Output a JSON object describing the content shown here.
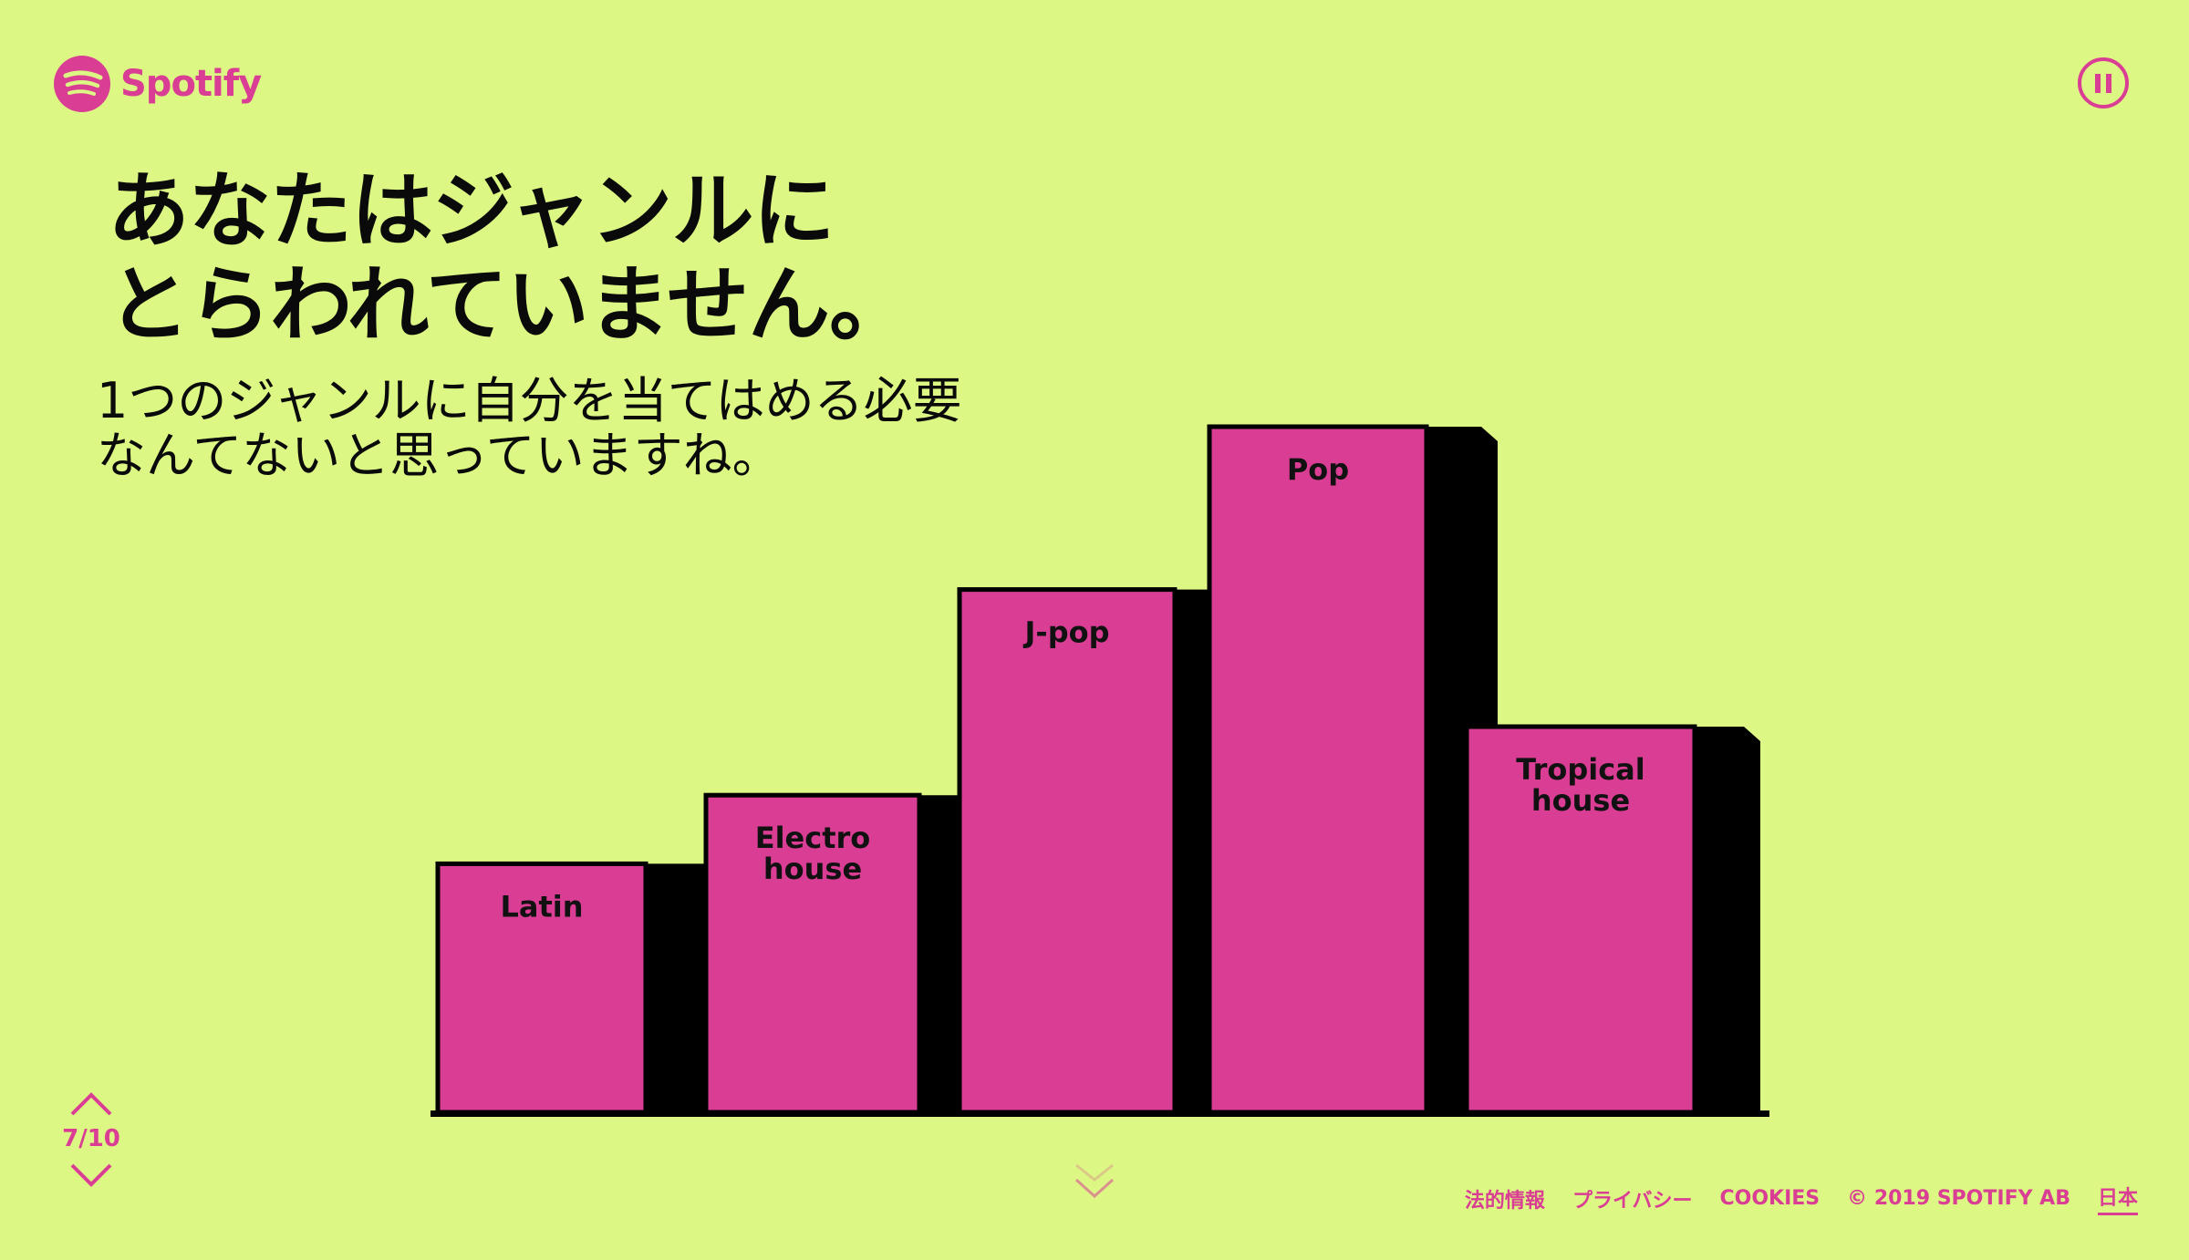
{
  "brand": {
    "name": "Spotify",
    "icon": "spotify-logo-icon",
    "accent_color": "#d93d94",
    "background_color": "#dcf783"
  },
  "controls": {
    "pause_icon": "pause-icon",
    "prev_icon": "chevron-up-icon",
    "next_icon": "chevron-down-icon",
    "scroll_hint_icon": "chevron-down-icon"
  },
  "slide": {
    "headline_lines": [
      "あなたはジャンルに",
      "とらわれていません。"
    ],
    "subhead_lines": [
      "1つのジャンルに自分を当てはめる必要",
      "なんてないと思っていますね。"
    ]
  },
  "chart_data": {
    "type": "bar",
    "categories": [
      "Latin",
      "Electro house",
      "J-pop",
      "Pop",
      "Tropical house"
    ],
    "values": [
      29,
      37,
      61,
      80,
      45
    ],
    "category_label_lines": [
      [
        "Latin"
      ],
      [
        "Electro",
        "house"
      ],
      [
        "J-pop"
      ],
      [
        "Pop"
      ],
      [
        "Tropical",
        "house"
      ]
    ],
    "bar_color": "#d93d94",
    "side_color": "#000000",
    "ylim": [
      0,
      80
    ]
  },
  "pager": {
    "counter": "7/10"
  },
  "footer": {
    "links": [
      "法的情報",
      "プライバシー",
      "COOKIES"
    ],
    "copyright": "© 2019 SPOTIFY AB",
    "language": "日本"
  }
}
